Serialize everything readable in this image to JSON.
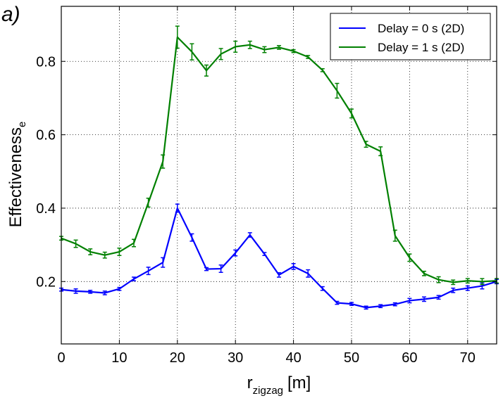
{
  "panel_label": "a)",
  "chart_data": {
    "type": "line",
    "xlabel_main": "r",
    "xlabel_sub": "zigzag",
    "xlabel_unit": "[m]",
    "ylabel_main": "Effectiveness",
    "ylabel_sub": "e",
    "xlim": [
      0,
      75
    ],
    "ylim": [
      0.03,
      0.95
    ],
    "xticks": [
      0,
      10,
      20,
      30,
      40,
      50,
      60,
      70
    ],
    "yticks": [
      0.2,
      0.4,
      0.6,
      0.8
    ],
    "ytick_labels": [
      "0.2",
      "0.4",
      "0.6",
      "0.8"
    ],
    "grid": true,
    "legend_position": "top-right",
    "series": [
      {
        "name": "Delay = 0 s (2D)",
        "color": "#0000ff",
        "x": [
          0,
          2.5,
          5,
          7.5,
          10,
          12.5,
          15,
          17.5,
          20,
          22.5,
          25,
          27.5,
          30,
          32.5,
          35,
          37.5,
          40,
          42.5,
          45,
          47.5,
          50,
          52.5,
          55,
          57.5,
          60,
          62.5,
          65,
          67.5,
          70,
          72.5,
          75
        ],
        "y": [
          0.178,
          0.174,
          0.172,
          0.169,
          0.18,
          0.207,
          0.229,
          0.252,
          0.4,
          0.32,
          0.234,
          0.235,
          0.278,
          0.327,
          0.275,
          0.218,
          0.241,
          0.222,
          0.181,
          0.142,
          0.139,
          0.129,
          0.133,
          0.138,
          0.148,
          0.152,
          0.157,
          0.176,
          0.182,
          0.188,
          0.2
        ],
        "err": [
          0.004,
          0.006,
          0.004,
          0.005,
          0.004,
          0.005,
          0.01,
          0.013,
          0.011,
          0.01,
          0.004,
          0.01,
          0.008,
          0.006,
          0.004,
          0.006,
          0.008,
          0.01,
          0.005,
          0.004,
          0.004,
          0.004,
          0.004,
          0.004,
          0.006,
          0.006,
          0.005,
          0.006,
          0.006,
          0.008,
          0.006
        ]
      },
      {
        "name": "Delay = 1 s (2D)",
        "color": "#008000",
        "x": [
          0,
          2.5,
          5,
          7.5,
          10,
          12.5,
          15,
          17.5,
          20,
          22.5,
          25,
          27.5,
          30,
          32.5,
          35,
          37.5,
          40,
          42.5,
          45,
          47.5,
          50,
          52.5,
          55,
          57.5,
          60,
          62.5,
          65,
          67.5,
          70,
          72.5,
          75
        ],
        "y": [
          0.318,
          0.303,
          0.281,
          0.272,
          0.281,
          0.305,
          0.415,
          0.527,
          0.866,
          0.826,
          0.775,
          0.82,
          0.84,
          0.845,
          0.832,
          0.838,
          0.828,
          0.812,
          0.776,
          0.72,
          0.658,
          0.574,
          0.555,
          0.325,
          0.265,
          0.222,
          0.205,
          0.198,
          0.202,
          0.2,
          0.202
        ],
        "err": [
          0.005,
          0.01,
          0.008,
          0.008,
          0.01,
          0.01,
          0.012,
          0.018,
          0.03,
          0.022,
          0.015,
          0.015,
          0.015,
          0.01,
          0.008,
          0.005,
          0.004,
          0.004,
          0.004,
          0.02,
          0.012,
          0.008,
          0.012,
          0.015,
          0.01,
          0.006,
          0.008,
          0.006,
          0.006,
          0.008,
          0.006
        ]
      }
    ]
  }
}
